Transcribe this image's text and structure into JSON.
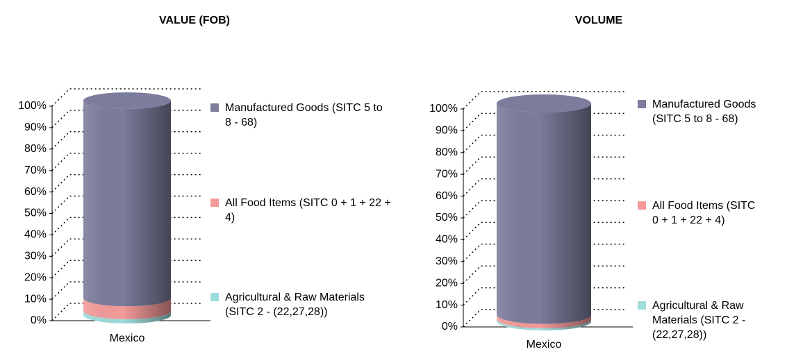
{
  "chart_data": [
    {
      "type": "cylinder",
      "title": "VALUE (FOB)",
      "categories": [
        "Mexico"
      ],
      "stacked": true,
      "legend": "right",
      "ylim": [
        0,
        100
      ],
      "yticks": [
        {
          "value": 0,
          "label": "0%"
        },
        {
          "value": 10,
          "label": "10%"
        },
        {
          "value": 20,
          "label": "20%"
        },
        {
          "value": 30,
          "label": "30%"
        },
        {
          "value": 40,
          "label": "40%"
        },
        {
          "value": 50,
          "label": "50%"
        },
        {
          "value": 60,
          "label": "60%"
        },
        {
          "value": 70,
          "label": "70%"
        },
        {
          "value": 80,
          "label": "80%"
        },
        {
          "value": 90,
          "label": "90%"
        },
        {
          "value": 100,
          "label": "100%"
        }
      ],
      "series": [
        {
          "name": "Agricultural & Raw Materials (SITC 2 - (22,27,28))",
          "color": "#9fdcdc",
          "values": [
            2
          ]
        },
        {
          "name": "All Food Items (SITC 0 + 1 + 22 + 4)",
          "color": "#f49a9a",
          "values": [
            6
          ]
        },
        {
          "name": "Manufactured Goods (SITC 5 to 8 - 68)",
          "color": "#7c7c9c",
          "values": [
            92
          ]
        }
      ]
    },
    {
      "type": "cylinder",
      "title": "VOLUME",
      "categories": [
        "Mexico"
      ],
      "stacked": true,
      "legend": "right",
      "ylim": [
        0,
        100
      ],
      "yticks": [
        {
          "value": 0,
          "label": "0%"
        },
        {
          "value": 10,
          "label": "10%"
        },
        {
          "value": 20,
          "label": "20%"
        },
        {
          "value": 30,
          "label": "30%"
        },
        {
          "value": 40,
          "label": "40%"
        },
        {
          "value": 50,
          "label": "50%"
        },
        {
          "value": 60,
          "label": "60%"
        },
        {
          "value": 70,
          "label": "70%"
        },
        {
          "value": 80,
          "label": "80%"
        },
        {
          "value": 90,
          "label": "90%"
        },
        {
          "value": 100,
          "label": "100%"
        }
      ],
      "series": [
        {
          "name": "Agricultural & Raw Materials (SITC 2 - (22,27,28))",
          "color": "#9fdcdc",
          "values": [
            1
          ]
        },
        {
          "name": "All Food Items (SITC 0 + 1 + 22 + 4)",
          "color": "#f49a9a",
          "values": [
            2
          ]
        },
        {
          "name": "Manufactured Goods (SITC 5 to 8 - 68)",
          "color": "#7c7c9c",
          "values": [
            97
          ]
        }
      ]
    }
  ]
}
